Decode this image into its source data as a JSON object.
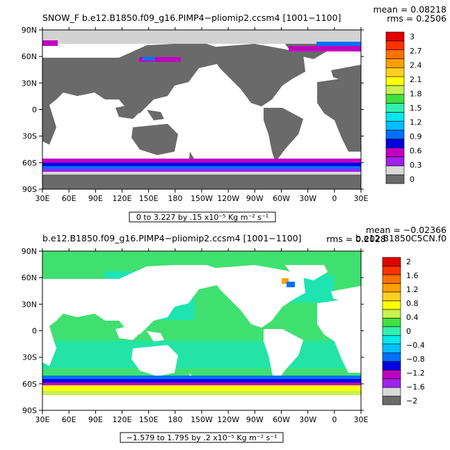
{
  "chart_data": [
    {
      "type": "heatmap",
      "title": "SNOW_F b.e12.B1850.f09_g16.PIMP4−pliomip2.ccsm4  [1001−1100]",
      "right_title": "",
      "mean_label": "mean = 0.08218",
      "rms_label": "rms = 0.2506",
      "range_label": "0 to 3.227 by .15 x10⁻⁵ Kg m⁻² s⁻¹",
      "x_ticks": [
        "30E",
        "60E",
        "90E",
        "120E",
        "150E",
        "180",
        "150W",
        "120W",
        "90W",
        "60W",
        "30W",
        "0",
        "30E"
      ],
      "y_ticks": [
        "90N",
        "60N",
        "30N",
        "0",
        "30S",
        "60S",
        "90S"
      ],
      "colorbar": {
        "labels": [
          "0",
          "0.3",
          "0.6",
          "0.9",
          "1.2",
          "1.5",
          "1.8",
          "2.1",
          "2.4",
          "2.7",
          "3"
        ],
        "colors": [
          "#6a6a6a",
          "#d9d9d9",
          "#a020f0",
          "#c000c0",
          "#0000e0",
          "#0070ff",
          "#00bfff",
          "#00e8e8",
          "#30f0b0",
          "#40e040",
          "#c8f050",
          "#ffff00",
          "#ffd020",
          "#ffa000",
          "#ff7000",
          "#ff3000",
          "#e00000"
        ]
      },
      "colors": {
        "land": "#6a6a6a",
        "ocean": "#ffffff",
        "ice": "#d2d2d2"
      }
    },
    {
      "type": "heatmap",
      "title": "b.e12.B1850.f09_g16.PIMP4−pliomip2.ccsm4  [1001−1100]",
      "right_title": "b.e12.B1850C5CN.f0",
      "mean_label": "mean = −0.02366",
      "rms_label": "rms = 0.2028",
      "range_label": "−1.579 to 1.795 by .2 x10⁻⁵ Kg m⁻² s⁻¹",
      "x_ticks": [
        "30E",
        "60E",
        "90E",
        "120E",
        "150E",
        "180",
        "150W",
        "120W",
        "90W",
        "60W",
        "30W",
        "0",
        "30E"
      ],
      "y_ticks": [
        "90N",
        "60N",
        "30N",
        "0",
        "30S",
        "60S",
        "90S"
      ],
      "colorbar": {
        "labels": [
          "−2",
          "−1.6",
          "−1.2",
          "−0.8",
          "−0.4",
          "0",
          "0.4",
          "0.8",
          "1.2",
          "1.6",
          "2"
        ],
        "colors": [
          "#6a6a6a",
          "#d9d9d9",
          "#a020f0",
          "#c000c0",
          "#0000e0",
          "#0070ff",
          "#00bfff",
          "#00e8e8",
          "#30f0b0",
          "#40e040",
          "#c8f050",
          "#ffff00",
          "#ffd020",
          "#ffa000",
          "#ff7000",
          "#ff3000",
          "#e00000"
        ]
      },
      "colors": {
        "land": "#ffffff",
        "ocean": "#40e070",
        "ice": "#d2d2d2"
      }
    }
  ]
}
